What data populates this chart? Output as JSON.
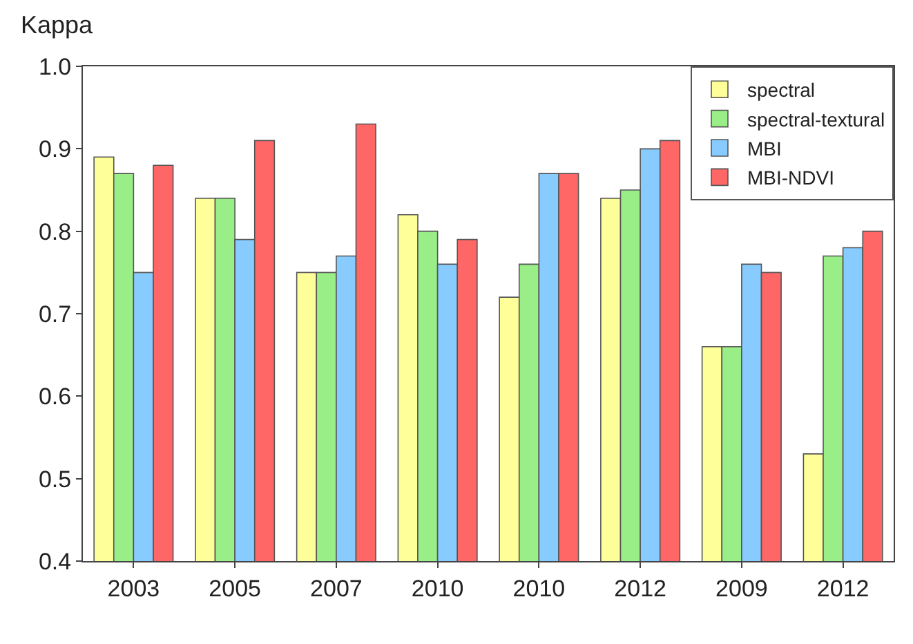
{
  "chart_data": {
    "type": "bar",
    "ylabel": "Kappa",
    "categories": [
      "2003",
      "2005",
      "2007",
      "2010",
      "2010",
      "2012",
      "2009",
      "2012"
    ],
    "series": [
      {
        "name": "spectral",
        "color": "#ffff99",
        "values": [
          0.89,
          0.84,
          0.75,
          0.82,
          0.72,
          0.84,
          0.66,
          0.53
        ]
      },
      {
        "name": "spectral-textural",
        "color": "#99ee88",
        "values": [
          0.87,
          0.84,
          0.75,
          0.8,
          0.76,
          0.85,
          0.66,
          0.77
        ]
      },
      {
        "name": "MBI",
        "color": "#88ccff",
        "values": [
          0.75,
          0.79,
          0.77,
          0.76,
          0.87,
          0.9,
          0.76,
          0.78
        ]
      },
      {
        "name": "MBI-NDVI",
        "color": "#ff6666",
        "values": [
          0.88,
          0.91,
          0.93,
          0.79,
          0.87,
          0.91,
          0.75,
          0.8
        ]
      }
    ],
    "ylim": [
      0.4,
      1.0
    ],
    "yticks": [
      0.4,
      0.5,
      0.6,
      0.7,
      0.8,
      0.9,
      {
        "value": 1,
        "label": "1.0"
      }
    ],
    "grid": false,
    "legend": "top right"
  }
}
